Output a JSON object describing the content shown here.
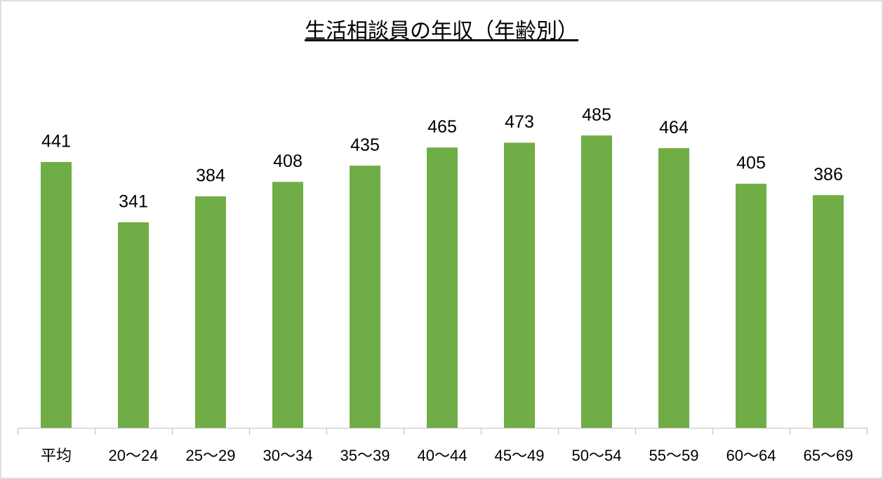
{
  "chart_data": {
    "type": "bar",
    "title": "生活相談員の年収（年齢別）",
    "categories": [
      "平均",
      "20〜24",
      "25〜29",
      "30〜34",
      "35〜39",
      "40〜44",
      "45〜49",
      "50〜54",
      "55〜59",
      "60〜64",
      "65〜69"
    ],
    "values": [
      441,
      341,
      384,
      408,
      435,
      465,
      473,
      485,
      464,
      405,
      386
    ],
    "color": "#70ad47"
  }
}
